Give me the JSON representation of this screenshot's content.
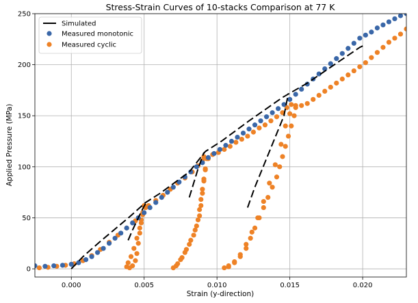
{
  "chart_data": {
    "type": "scatter",
    "title": "Stress-Strain Curves of 10-stacks Comparison at 77 K",
    "xlabel": "Strain (y-direction)",
    "ylabel": "Applied Pressure (MPa)",
    "xlim": [
      -0.0025,
      0.023
    ],
    "ylim": [
      -8,
      250
    ],
    "xticks": [
      0.0,
      0.005,
      0.01,
      0.015,
      0.02
    ],
    "xtick_labels": [
      "0.000",
      "0.005",
      "0.010",
      "0.015",
      "0.020"
    ],
    "yticks": [
      0,
      50,
      100,
      150,
      200,
      250
    ],
    "ytick_labels": [
      "0",
      "50",
      "100",
      "150",
      "200",
      "250"
    ],
    "grid": true,
    "legend_position": "top-left",
    "series": [
      {
        "name": "Simulated",
        "kind": "dashed-line",
        "color": "#000000",
        "segments": [
          [
            [
              0.0,
              0
            ],
            [
              0.0008,
              12
            ],
            [
              0.002,
              27
            ],
            [
              0.004,
              51
            ],
            [
              0.0051,
              65
            ],
            [
              0.0061,
              74
            ],
            [
              0.0081,
              95
            ],
            [
              0.0092,
              115
            ],
            [
              0.0103,
              125
            ],
            [
              0.0122,
              145
            ],
            [
              0.0145,
              168
            ],
            [
              0.0162,
              182
            ],
            [
              0.0198,
              217
            ],
            [
              0.0201,
              219
            ]
          ],
          [
            [
              0.0039,
              28
            ],
            [
              0.0042,
              38
            ],
            [
              0.0048,
              56
            ],
            [
              0.0051,
              64
            ]
          ],
          [
            [
              0.0081,
              70
            ],
            [
              0.0084,
              84
            ],
            [
              0.0087,
              98
            ],
            [
              0.0091,
              114
            ]
          ],
          [
            [
              0.0121,
              60
            ],
            [
              0.0126,
              80
            ],
            [
              0.0136,
              115
            ],
            [
              0.0146,
              150
            ],
            [
              0.0149,
              172
            ]
          ]
        ]
      },
      {
        "name": "Measured monotonic",
        "kind": "markers",
        "color": "#3a67a8",
        "points": [
          [
            -0.0025,
            3
          ],
          [
            -0.0018,
            2.5
          ],
          [
            -0.0012,
            3
          ],
          [
            -0.0006,
            3.5
          ],
          [
            0.0,
            4.5
          ],
          [
            0.0005,
            6
          ],
          [
            0.001,
            9
          ],
          [
            0.0014,
            12
          ],
          [
            0.0018,
            16
          ],
          [
            0.0022,
            20
          ],
          [
            0.0026,
            25
          ],
          [
            0.003,
            30
          ],
          [
            0.0034,
            35
          ],
          [
            0.0038,
            40
          ],
          [
            0.0042,
            45
          ],
          [
            0.0046,
            50
          ],
          [
            0.005,
            55
          ],
          [
            0.0054,
            60
          ],
          [
            0.0058,
            65
          ],
          [
            0.0062,
            70
          ],
          [
            0.0066,
            75
          ],
          [
            0.007,
            80
          ],
          [
            0.0074,
            85
          ],
          [
            0.0078,
            90
          ],
          [
            0.0082,
            95
          ],
          [
            0.0086,
            100
          ],
          [
            0.009,
            104
          ],
          [
            0.0094,
            109
          ],
          [
            0.0098,
            113
          ],
          [
            0.0102,
            117
          ],
          [
            0.0106,
            121
          ],
          [
            0.011,
            125
          ],
          [
            0.0114,
            129
          ],
          [
            0.0118,
            133
          ],
          [
            0.0122,
            137
          ],
          [
            0.0126,
            141
          ],
          [
            0.013,
            145
          ],
          [
            0.0134,
            149
          ],
          [
            0.0138,
            153
          ],
          [
            0.0142,
            157
          ],
          [
            0.0146,
            161
          ],
          [
            0.015,
            166
          ],
          [
            0.0154,
            171
          ],
          [
            0.0158,
            176
          ],
          [
            0.0162,
            181
          ],
          [
            0.0166,
            186
          ],
          [
            0.017,
            191
          ],
          [
            0.0174,
            196
          ],
          [
            0.0178,
            201
          ],
          [
            0.0182,
            206
          ],
          [
            0.0186,
            211
          ],
          [
            0.019,
            216
          ],
          [
            0.0194,
            221
          ],
          [
            0.0198,
            226
          ],
          [
            0.0202,
            229
          ],
          [
            0.0206,
            232
          ],
          [
            0.021,
            236
          ],
          [
            0.0214,
            239
          ],
          [
            0.0218,
            242
          ],
          [
            0.0222,
            245
          ],
          [
            0.0226,
            248
          ],
          [
            0.023,
            250
          ]
        ]
      },
      {
        "name": "Measured cyclic",
        "kind": "markers",
        "color": "#ee8226",
        "points": [
          [
            -0.0022,
            1
          ],
          [
            -0.0016,
            1.5
          ],
          [
            -0.001,
            2.5
          ],
          [
            -0.0004,
            3.5
          ],
          [
            0.0002,
            5
          ],
          [
            0.0008,
            8
          ],
          [
            0.0014,
            13
          ],
          [
            0.002,
            19
          ],
          [
            0.0026,
            26
          ],
          [
            0.0032,
            33
          ],
          [
            0.0038,
            40
          ],
          [
            0.0044,
            47
          ],
          [
            0.0049,
            55
          ],
          [
            0.0051,
            60
          ],
          [
            0.005,
            62
          ],
          [
            0.0049,
            55
          ],
          [
            0.0048,
            45
          ],
          [
            0.0047,
            35
          ],
          [
            0.0046,
            25
          ],
          [
            0.0045,
            15
          ],
          [
            0.0044,
            8
          ],
          [
            0.0042,
            3
          ],
          [
            0.004,
            1
          ],
          [
            0.0038,
            2
          ],
          [
            0.0039,
            6
          ],
          [
            0.0041,
            12
          ],
          [
            0.0043,
            20
          ],
          [
            0.0045,
            30
          ],
          [
            0.0047,
            40
          ],
          [
            0.0048,
            48
          ],
          [
            0.0049,
            53
          ],
          [
            0.0053,
            62
          ],
          [
            0.0058,
            67
          ],
          [
            0.0063,
            72
          ],
          [
            0.0068,
            78
          ],
          [
            0.0073,
            84
          ],
          [
            0.0078,
            89
          ],
          [
            0.0083,
            95
          ],
          [
            0.0087,
            101
          ],
          [
            0.009,
            106
          ],
          [
            0.0091,
            110
          ],
          [
            0.0093,
            108
          ],
          [
            0.0092,
            98
          ],
          [
            0.0091,
            88
          ],
          [
            0.009,
            78
          ],
          [
            0.0089,
            68
          ],
          [
            0.0088,
            58
          ],
          [
            0.0087,
            48
          ],
          [
            0.0085,
            38
          ],
          [
            0.0082,
            28
          ],
          [
            0.0079,
            19
          ],
          [
            0.0076,
            11
          ],
          [
            0.0073,
            5
          ],
          [
            0.007,
            1
          ],
          [
            0.0072,
            3
          ],
          [
            0.0075,
            9
          ],
          [
            0.0078,
            16
          ],
          [
            0.0081,
            24
          ],
          [
            0.0084,
            33
          ],
          [
            0.0086,
            42
          ],
          [
            0.0088,
            52
          ],
          [
            0.0089,
            62
          ],
          [
            0.009,
            74
          ],
          [
            0.0091,
            86
          ],
          [
            0.0092,
            97
          ],
          [
            0.0094,
            108
          ],
          [
            0.0097,
            112
          ],
          [
            0.0101,
            114
          ],
          [
            0.0105,
            117
          ],
          [
            0.0109,
            120
          ],
          [
            0.0113,
            124
          ],
          [
            0.0117,
            127
          ],
          [
            0.0121,
            130
          ],
          [
            0.0125,
            134
          ],
          [
            0.0129,
            138
          ],
          [
            0.0133,
            141
          ],
          [
            0.0137,
            145
          ],
          [
            0.0141,
            149
          ],
          [
            0.0145,
            153
          ],
          [
            0.0148,
            158
          ],
          [
            0.0151,
            161
          ],
          [
            0.0154,
            160
          ],
          [
            0.0153,
            150
          ],
          [
            0.0151,
            140
          ],
          [
            0.0149,
            130
          ],
          [
            0.0147,
            120
          ],
          [
            0.0145,
            110
          ],
          [
            0.0143,
            100
          ],
          [
            0.0141,
            90
          ],
          [
            0.0138,
            80
          ],
          [
            0.0135,
            70
          ],
          [
            0.0132,
            60
          ],
          [
            0.0129,
            50
          ],
          [
            0.0126,
            40
          ],
          [
            0.0123,
            30
          ],
          [
            0.012,
            20
          ],
          [
            0.0116,
            12
          ],
          [
            0.0112,
            6
          ],
          [
            0.0108,
            2
          ],
          [
            0.0105,
            1
          ],
          [
            0.0108,
            3
          ],
          [
            0.0112,
            7
          ],
          [
            0.0116,
            14
          ],
          [
            0.012,
            24
          ],
          [
            0.0124,
            36
          ],
          [
            0.0128,
            50
          ],
          [
            0.0132,
            66
          ],
          [
            0.0136,
            84
          ],
          [
            0.014,
            102
          ],
          [
            0.0144,
            122
          ],
          [
            0.0147,
            140
          ],
          [
            0.015,
            152
          ],
          [
            0.0154,
            158
          ],
          [
            0.0158,
            160
          ],
          [
            0.0162,
            162
          ],
          [
            0.0166,
            166
          ],
          [
            0.017,
            170
          ],
          [
            0.0174,
            174
          ],
          [
            0.0178,
            178
          ],
          [
            0.0182,
            182
          ],
          [
            0.0186,
            186
          ],
          [
            0.019,
            190
          ],
          [
            0.0194,
            194
          ],
          [
            0.0198,
            198
          ],
          [
            0.0202,
            202
          ],
          [
            0.0206,
            207
          ],
          [
            0.021,
            212
          ],
          [
            0.0214,
            217
          ],
          [
            0.0218,
            222
          ],
          [
            0.0222,
            226
          ],
          [
            0.0226,
            230
          ],
          [
            0.023,
            235
          ]
        ]
      }
    ]
  }
}
